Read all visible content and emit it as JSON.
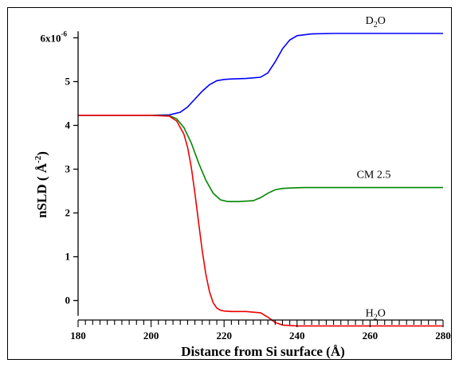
{
  "chart_data": {
    "type": "line",
    "xlabel": "Distance from Si surface (Å)",
    "ylabel": "nSLD ( Å-2)",
    "ylabel_parts": {
      "pre": "nSLD ( ",
      "unit": "Å",
      "exp": "-2",
      "post": ")"
    },
    "xlim": [
      180,
      280
    ],
    "ylim": [
      -0.7,
      6.5
    ],
    "y_multiplier_label": {
      "base": "6x10",
      "exp": "-6"
    },
    "x_ticks": [
      180,
      200,
      220,
      240,
      260,
      280
    ],
    "y_ticks": [
      0,
      1,
      2,
      3,
      4,
      5,
      6
    ],
    "y_tick_labels": [
      "0",
      "1",
      "2",
      "3",
      "4",
      "5",
      ""
    ],
    "grid": false,
    "series": [
      {
        "name": "D2O",
        "label_main": "D",
        "label_sub": "2",
        "label_post": "O",
        "color": "#0000ff",
        "x": [
          180,
          200,
          205,
          208,
          210,
          212,
          214,
          216,
          218,
          220,
          222,
          226,
          230,
          232,
          234,
          236,
          238,
          240,
          244,
          250,
          280
        ],
        "values": [
          4.23,
          4.23,
          4.24,
          4.3,
          4.42,
          4.6,
          4.78,
          4.93,
          5.02,
          5.05,
          5.06,
          5.07,
          5.1,
          5.2,
          5.45,
          5.75,
          5.95,
          6.05,
          6.09,
          6.1,
          6.1
        ]
      },
      {
        "name": "CM 2.5",
        "label_main": "CM 2.5",
        "label_sub": "",
        "label_post": "",
        "color": "#008800",
        "x": [
          180,
          200,
          205,
          207,
          209,
          211,
          213,
          215,
          217,
          219,
          221,
          224,
          228,
          230,
          232,
          234,
          236,
          238,
          242,
          250,
          280
        ],
        "values": [
          4.23,
          4.23,
          4.22,
          4.15,
          3.95,
          3.6,
          3.15,
          2.75,
          2.45,
          2.3,
          2.26,
          2.26,
          2.28,
          2.35,
          2.45,
          2.53,
          2.56,
          2.57,
          2.58,
          2.58,
          2.58
        ]
      },
      {
        "name": "H2O",
        "label_main": "H",
        "label_sub": "2",
        "label_post": "O",
        "color": "#ee0000",
        "x": [
          180,
          200,
          205,
          207,
          209,
          210,
          211,
          212,
          213,
          214,
          215,
          216,
          217,
          218,
          219,
          220,
          222,
          226,
          230,
          232,
          234,
          236,
          240,
          250,
          280
        ],
        "values": [
          4.23,
          4.23,
          4.21,
          4.1,
          3.8,
          3.5,
          3.05,
          2.45,
          1.8,
          1.15,
          0.6,
          0.2,
          -0.05,
          -0.17,
          -0.22,
          -0.24,
          -0.25,
          -0.25,
          -0.28,
          -0.38,
          -0.5,
          -0.56,
          -0.58,
          -0.58,
          -0.58
        ]
      }
    ]
  }
}
